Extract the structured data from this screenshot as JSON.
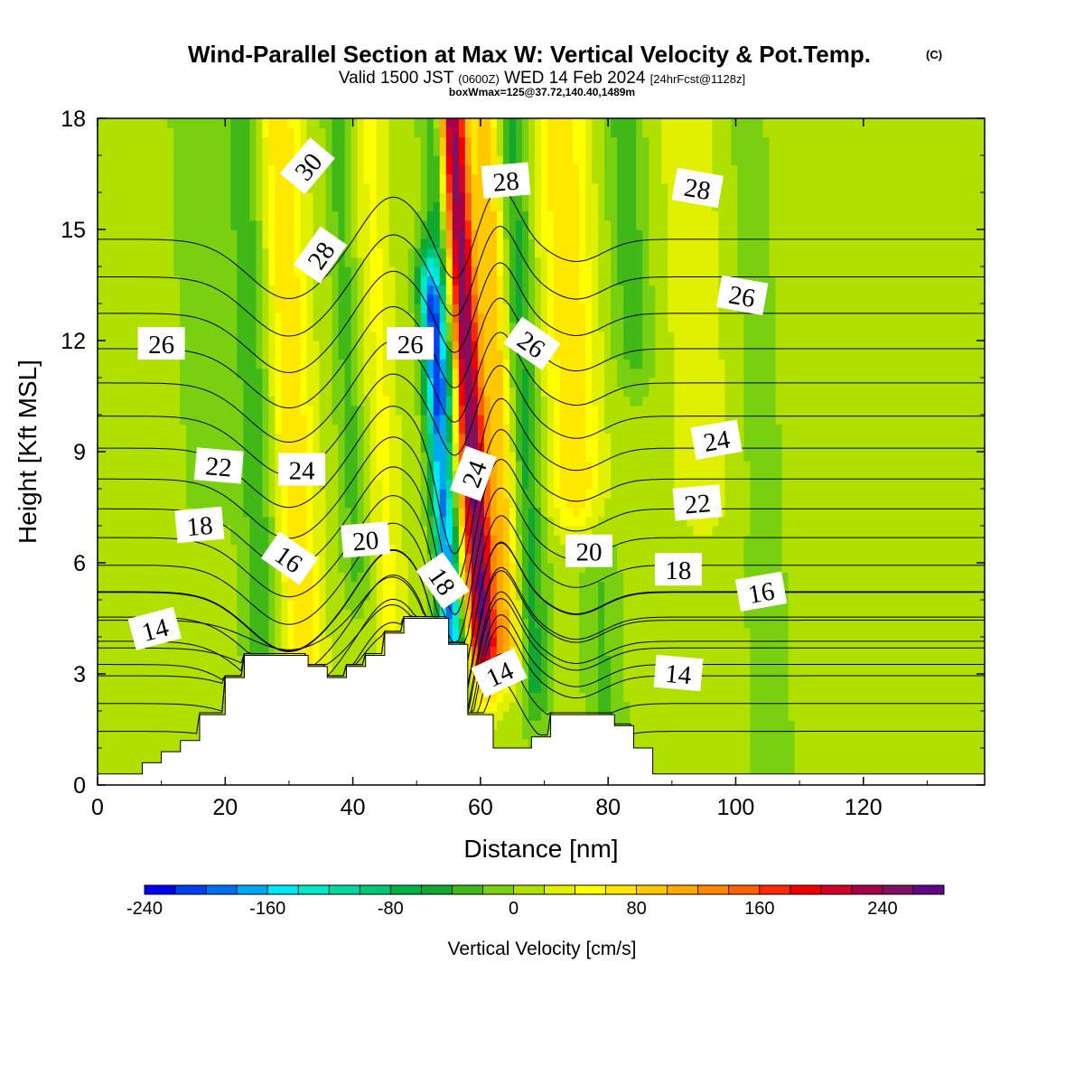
{
  "title": {
    "main": "Wind-Parallel Section at Max W: Vertical Velocity & Pot.Temp.",
    "copyright": "(C)",
    "valid_prefix": "Valid 1500 JST",
    "valid_utc": "(0600Z)",
    "valid_date": "WED 14 Feb 2024",
    "forecast": "[24hrFcst@1128z]",
    "box_wmax": "boxWmax=125@37.72,140.40,1489m"
  },
  "chart_data": {
    "type": "heatmap",
    "xlabel": "Distance [nm]",
    "ylabel": "Height [Kft MSL]",
    "xlim": [
      0,
      139
    ],
    "ylim": [
      0,
      18
    ],
    "x_ticks": [
      "0",
      "20",
      "40",
      "60",
      "80",
      "100",
      "120"
    ],
    "y_ticks": [
      "0",
      "3",
      "6",
      "9",
      "12",
      "15",
      "18"
    ],
    "colorbar": {
      "label": "Vertical Velocity [cm/s]",
      "range": [
        -240,
        280
      ],
      "step": 20,
      "tick_labels": [
        "-240",
        "-160",
        "-80",
        "0",
        "80",
        "160",
        "240"
      ],
      "colors": [
        "#0000f0",
        "#0040f0",
        "#0070f0",
        "#00a8f0",
        "#00e8f8",
        "#00e8c8",
        "#00d8a0",
        "#00c878",
        "#00b048",
        "#10a830",
        "#40b818",
        "#78d010",
        "#b0e000",
        "#e0f000",
        "#ffff00",
        "#ffe800",
        "#ffc800",
        "#ffa800",
        "#ff8800",
        "#ff6000",
        "#ff2800",
        "#f00000",
        "#d00028",
        "#a80048",
        "#801060",
        "#600888"
      ]
    },
    "terrain_kft": [
      [
        0,
        0.3
      ],
      [
        7,
        0.3
      ],
      [
        7,
        0.6
      ],
      [
        10,
        0.6
      ],
      [
        10,
        0.9
      ],
      [
        13,
        0.9
      ],
      [
        13,
        1.2
      ],
      [
        16,
        1.2
      ],
      [
        16,
        1.9
      ],
      [
        20,
        1.9
      ],
      [
        20,
        2.9
      ],
      [
        23,
        2.9
      ],
      [
        23,
        3.5
      ],
      [
        33,
        3.5
      ],
      [
        33,
        3.2
      ],
      [
        36,
        3.2
      ],
      [
        36,
        2.9
      ],
      [
        39,
        2.9
      ],
      [
        39,
        3.2
      ],
      [
        42,
        3.2
      ],
      [
        42,
        3.5
      ],
      [
        45,
        3.5
      ],
      [
        45,
        4.1
      ],
      [
        48,
        4.1
      ],
      [
        48,
        4.5
      ],
      [
        55,
        4.5
      ],
      [
        55,
        3.8
      ],
      [
        58,
        3.8
      ],
      [
        58,
        1.9
      ],
      [
        62,
        1.9
      ],
      [
        62,
        1.0
      ],
      [
        68,
        1.0
      ],
      [
        68,
        1.3
      ],
      [
        71,
        1.3
      ],
      [
        71,
        1.9
      ],
      [
        81,
        1.9
      ],
      [
        81,
        1.6
      ],
      [
        84,
        1.6
      ],
      [
        84,
        1.0
      ],
      [
        87,
        1.0
      ],
      [
        87,
        0.3
      ],
      [
        139,
        0.3
      ]
    ],
    "velocity_field": [
      {
        "x": 31,
        "vmax": 80,
        "note": "updraft band"
      },
      {
        "x": 45,
        "vmax": 40,
        "note": "updraft band"
      },
      {
        "x": 54,
        "vmax": -190,
        "note": "downdraft"
      },
      {
        "x": 59,
        "vmax": 250,
        "note": "strong updraft"
      },
      {
        "x": 75,
        "vmax": 70,
        "note": "updraft band"
      }
    ],
    "theta_contours": [
      {
        "label": "14",
        "positions": [
          [
            9,
            4.2
          ],
          [
            63,
            3.0
          ],
          [
            91,
            3.0
          ]
        ]
      },
      {
        "label": "16",
        "positions": [
          [
            30,
            6.1
          ],
          [
            104,
            5.2
          ]
        ]
      },
      {
        "label": "18",
        "positions": [
          [
            16,
            7.0
          ],
          [
            54,
            5.5
          ],
          [
            91,
            5.8
          ]
        ]
      },
      {
        "label": "20",
        "positions": [
          [
            42,
            6.6
          ],
          [
            77,
            6.3
          ]
        ]
      },
      {
        "label": "22",
        "positions": [
          [
            19,
            8.6
          ],
          [
            94,
            7.6
          ]
        ]
      },
      {
        "label": "24",
        "positions": [
          [
            32,
            8.5
          ],
          [
            59,
            8.4
          ],
          [
            97,
            9.3
          ]
        ]
      },
      {
        "label": "26",
        "positions": [
          [
            10,
            11.9
          ],
          [
            49,
            11.9
          ],
          [
            68,
            11.9
          ],
          [
            101,
            13.2
          ]
        ]
      },
      {
        "label": "28",
        "positions": [
          [
            35,
            14.3
          ],
          [
            64,
            16.3
          ],
          [
            94,
            16.1
          ]
        ]
      },
      {
        "label": "30",
        "positions": [
          [
            33,
            16.7
          ]
        ]
      }
    ]
  }
}
